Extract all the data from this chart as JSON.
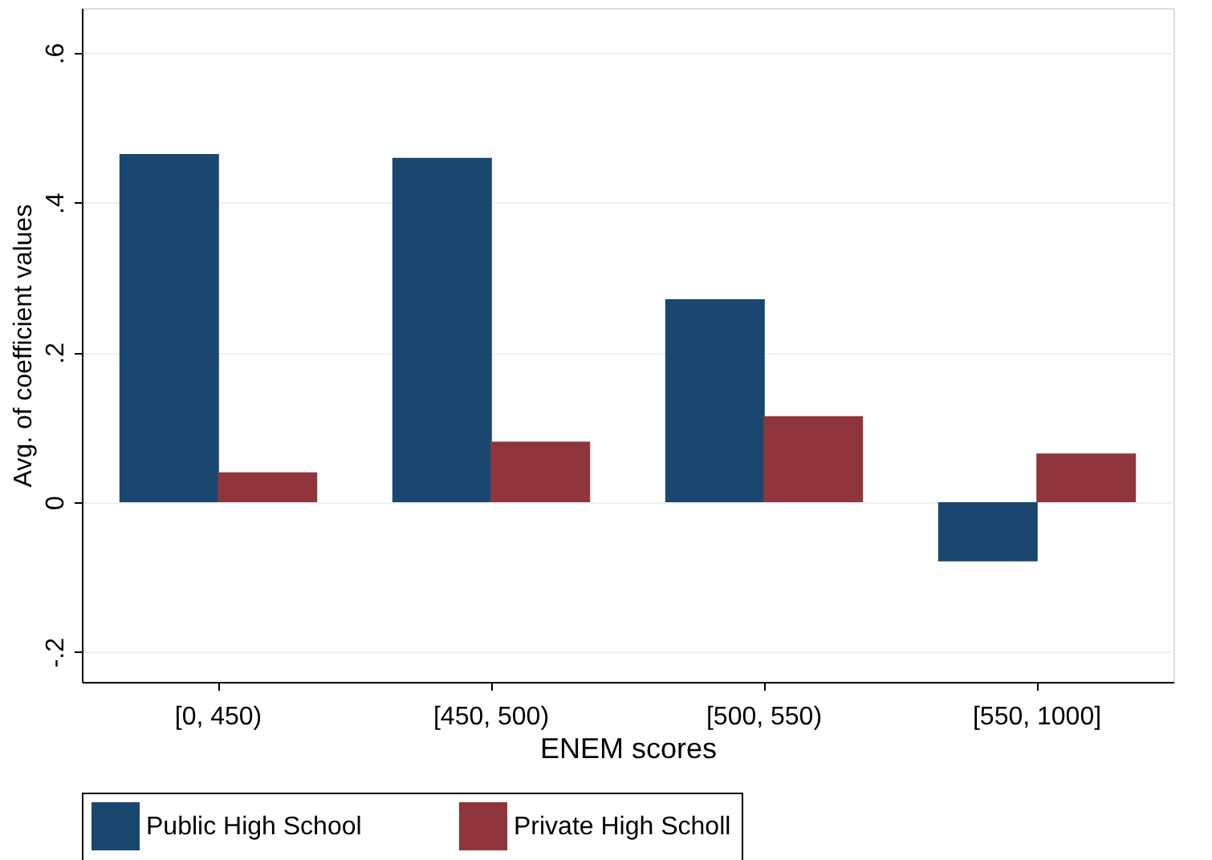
{
  "chart_data": {
    "type": "bar",
    "xlabel": "ENEM scores",
    "ylabel": "Avg. of coefficient values",
    "categories": [
      "[0, 450)",
      "[450, 500)",
      "[500, 550)",
      "[550, 1000]"
    ],
    "series": [
      {
        "name": "Public High School",
        "color": "#1a476f",
        "values": [
          0.465,
          0.46,
          0.271,
          -0.079
        ]
      },
      {
        "name": "Private High Scholl",
        "color": "#90353b",
        "values": [
          0.04,
          0.081,
          0.115,
          0.065
        ]
      }
    ],
    "ylim": [
      -0.24,
      0.66
    ],
    "yticks": [
      {
        "value": -0.2,
        "label": "-.2"
      },
      {
        "value": 0,
        "label": "0"
      },
      {
        "value": 0.2,
        "label": ".2"
      },
      {
        "value": 0.4,
        "label": ".4"
      },
      {
        "value": 0.6,
        "label": ".6"
      }
    ],
    "grid": "y",
    "legend": "bottom"
  }
}
